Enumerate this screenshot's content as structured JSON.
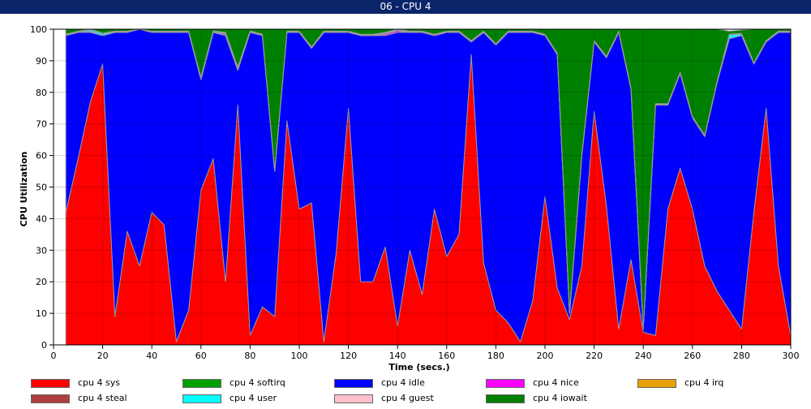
{
  "window": {
    "title": "06 - CPU 4"
  },
  "chart_data": {
    "type": "area",
    "stacked": true,
    "xlabel": "Time (secs.)",
    "ylabel": "CPU Utilization",
    "xlim": [
      0,
      300
    ],
    "ylim": [
      0,
      100
    ],
    "xticks": [
      0,
      20,
      40,
      60,
      80,
      100,
      120,
      140,
      160,
      180,
      200,
      220,
      240,
      260,
      280,
      300
    ],
    "yticks": [
      0,
      10,
      20,
      30,
      40,
      50,
      60,
      70,
      80,
      90,
      100
    ],
    "x": [
      5,
      10,
      15,
      20,
      25,
      30,
      35,
      40,
      45,
      50,
      55,
      60,
      65,
      70,
      75,
      80,
      85,
      90,
      95,
      100,
      105,
      110,
      115,
      120,
      125,
      130,
      135,
      140,
      145,
      150,
      155,
      160,
      165,
      170,
      175,
      180,
      185,
      190,
      195,
      200,
      205,
      210,
      215,
      220,
      225,
      230,
      235,
      240,
      245,
      250,
      255,
      260,
      265,
      270,
      275,
      280,
      285,
      290,
      295,
      300
    ],
    "series": [
      {
        "name": "cpu 4 sys",
        "color": "#ff0000",
        "values": [
          42,
          59,
          77,
          89,
          9,
          36,
          25,
          42,
          38,
          1,
          11,
          49,
          59,
          20,
          76,
          3,
          12,
          9,
          71,
          43,
          45,
          1,
          29,
          75,
          20,
          20,
          31,
          6,
          30,
          16,
          43,
          28,
          35,
          92,
          26,
          11,
          7,
          1,
          14,
          47,
          18,
          8,
          25,
          74,
          44,
          5,
          27,
          4,
          3,
          43,
          56,
          43,
          25,
          17,
          11,
          5,
          42,
          75,
          25,
          3
        ]
      },
      {
        "name": "cpu 4 softirq",
        "color": "#00a000",
        "values": [
          0,
          0,
          0,
          0,
          0,
          0,
          0,
          0,
          0,
          0,
          0,
          0,
          0,
          0,
          0,
          0,
          0,
          0,
          0,
          0,
          0,
          0,
          0,
          0,
          0,
          0,
          0,
          0,
          0,
          0,
          0,
          0,
          0,
          0,
          0,
          0,
          0,
          0,
          0,
          0,
          0,
          0,
          0,
          0,
          0,
          0,
          0,
          0,
          0,
          0,
          0,
          0,
          0,
          0,
          0,
          0,
          0,
          0,
          0,
          0
        ]
      },
      {
        "name": "cpu 4 idle",
        "color": "#0000ff",
        "values": [
          56,
          40,
          22,
          9,
          90,
          63,
          75,
          57,
          61,
          98,
          88,
          35,
          40,
          78,
          11,
          96,
          86,
          46,
          28,
          56,
          49,
          98,
          70,
          24,
          78,
          78,
          67,
          93,
          69,
          83,
          55,
          71,
          64,
          4,
          73,
          84,
          92,
          98,
          85,
          51,
          74,
          2,
          35,
          22,
          47,
          94,
          54,
          1,
          73,
          33,
          30,
          29,
          41,
          66,
          86,
          93,
          47,
          21,
          74,
          96
        ]
      },
      {
        "name": "cpu 4 nice",
        "color": "#ff00ff",
        "values": [
          0,
          0,
          0.3,
          0,
          0,
          0,
          0,
          0,
          0,
          0,
          0,
          0.3,
          0,
          0.5,
          0.5,
          0,
          0,
          0,
          0,
          0,
          0,
          0,
          0,
          0,
          0,
          0,
          0.5,
          0.5,
          0,
          0,
          0,
          0,
          0,
          0,
          0,
          0,
          0,
          0,
          0,
          0,
          0,
          0,
          0,
          0,
          0,
          0,
          0,
          0,
          0,
          0,
          0,
          0,
          0,
          0,
          0,
          0,
          0,
          0,
          0,
          0
        ]
      },
      {
        "name": "cpu 4 irq",
        "color": "#e8a000",
        "values": [
          0,
          0,
          0,
          0,
          0,
          0,
          0,
          0,
          0,
          0,
          0,
          0,
          0,
          0,
          0,
          0,
          0,
          0,
          0,
          0,
          0,
          0,
          0,
          0,
          0,
          0,
          0,
          0,
          0,
          0,
          0,
          0,
          0,
          0,
          0,
          0,
          0,
          0,
          0,
          0,
          0,
          0,
          0,
          0,
          0,
          0,
          0,
          0,
          0,
          0,
          0,
          0,
          0,
          0,
          0,
          0,
          0,
          0,
          0,
          0
        ]
      },
      {
        "name": "cpu 4 steal",
        "color": "#b04040",
        "values": [
          0,
          0,
          0,
          0,
          0,
          0,
          0,
          0,
          0,
          0,
          0,
          0,
          0,
          0,
          0,
          0,
          0,
          0,
          0,
          0,
          0,
          0,
          0,
          0,
          0,
          0,
          0,
          0,
          0,
          0,
          0,
          0,
          0,
          0,
          0,
          0,
          0,
          0,
          0,
          0,
          0,
          0,
          0,
          0,
          0,
          0,
          0,
          0,
          0,
          0,
          0,
          0,
          0,
          0,
          0,
          0,
          0,
          0,
          0,
          0
        ]
      },
      {
        "name": "cpu 4 user",
        "color": "#00ffff",
        "values": [
          0.2,
          0.2,
          0.5,
          0.6,
          0.2,
          0.2,
          0.2,
          0.2,
          0.2,
          0.2,
          0.2,
          0.3,
          0.3,
          0.3,
          0.3,
          0.3,
          0.2,
          0.2,
          0.2,
          0.2,
          0.2,
          0.2,
          0.2,
          0.2,
          0.2,
          0.2,
          0.3,
          0.3,
          0.2,
          0.2,
          0.2,
          0.2,
          0.2,
          0.2,
          0.2,
          0.2,
          0.2,
          0.2,
          0.2,
          0.2,
          0.2,
          0.2,
          0.2,
          0.2,
          0.2,
          0.2,
          0.2,
          0.2,
          0.2,
          0.2,
          0.2,
          0.2,
          0.2,
          0.2,
          1.2,
          0.5,
          0.2,
          0.2,
          0.2,
          0.2
        ]
      },
      {
        "name": "cpu 4 guest",
        "color": "#ffc0cb",
        "values": [
          0.2,
          0.2,
          0.2,
          0.2,
          0.2,
          0.2,
          0.2,
          0.2,
          0.2,
          0.2,
          0.2,
          0.2,
          0.2,
          0.2,
          0.2,
          0.2,
          0.2,
          0.2,
          0.2,
          0.2,
          0.2,
          0.2,
          0.2,
          0.2,
          0.2,
          0.2,
          0.2,
          0.2,
          0.2,
          0.2,
          0.2,
          0.2,
          0.2,
          0.2,
          0.2,
          0.2,
          0.2,
          0.2,
          0.2,
          0.2,
          0.2,
          0.2,
          0.2,
          0.2,
          0.2,
          0.2,
          0.2,
          0.2,
          0.2,
          0.2,
          0.2,
          0.2,
          0.2,
          0.2,
          0.2,
          0.2,
          0.2,
          0.2,
          0.2,
          0.2
        ]
      },
      {
        "name": "cpu 4 iowait",
        "color": "#008000",
        "values": [
          1.6,
          0.6,
          0,
          1.2,
          0.6,
          0.6,
          0,
          0.6,
          0.6,
          0.6,
          0.6,
          15.2,
          0.5,
          1,
          12,
          0.5,
          1.6,
          44.6,
          0.6,
          0.6,
          5.6,
          0.6,
          0.6,
          0.6,
          1.6,
          1.6,
          1,
          0,
          0.6,
          0.6,
          1.6,
          0.6,
          0.6,
          3.6,
          0.6,
          4.6,
          0.6,
          0.6,
          0.6,
          1.6,
          7.6,
          89.6,
          39.6,
          3.6,
          8.6,
          0.6,
          18.6,
          94.6,
          23.6,
          23.6,
          13.6,
          27.6,
          33.6,
          16.6,
          1,
          1,
          10.6,
          3.6,
          0.6,
          0.6
        ]
      }
    ],
    "legend": {
      "placement": "bottom",
      "columns": 5
    }
  }
}
